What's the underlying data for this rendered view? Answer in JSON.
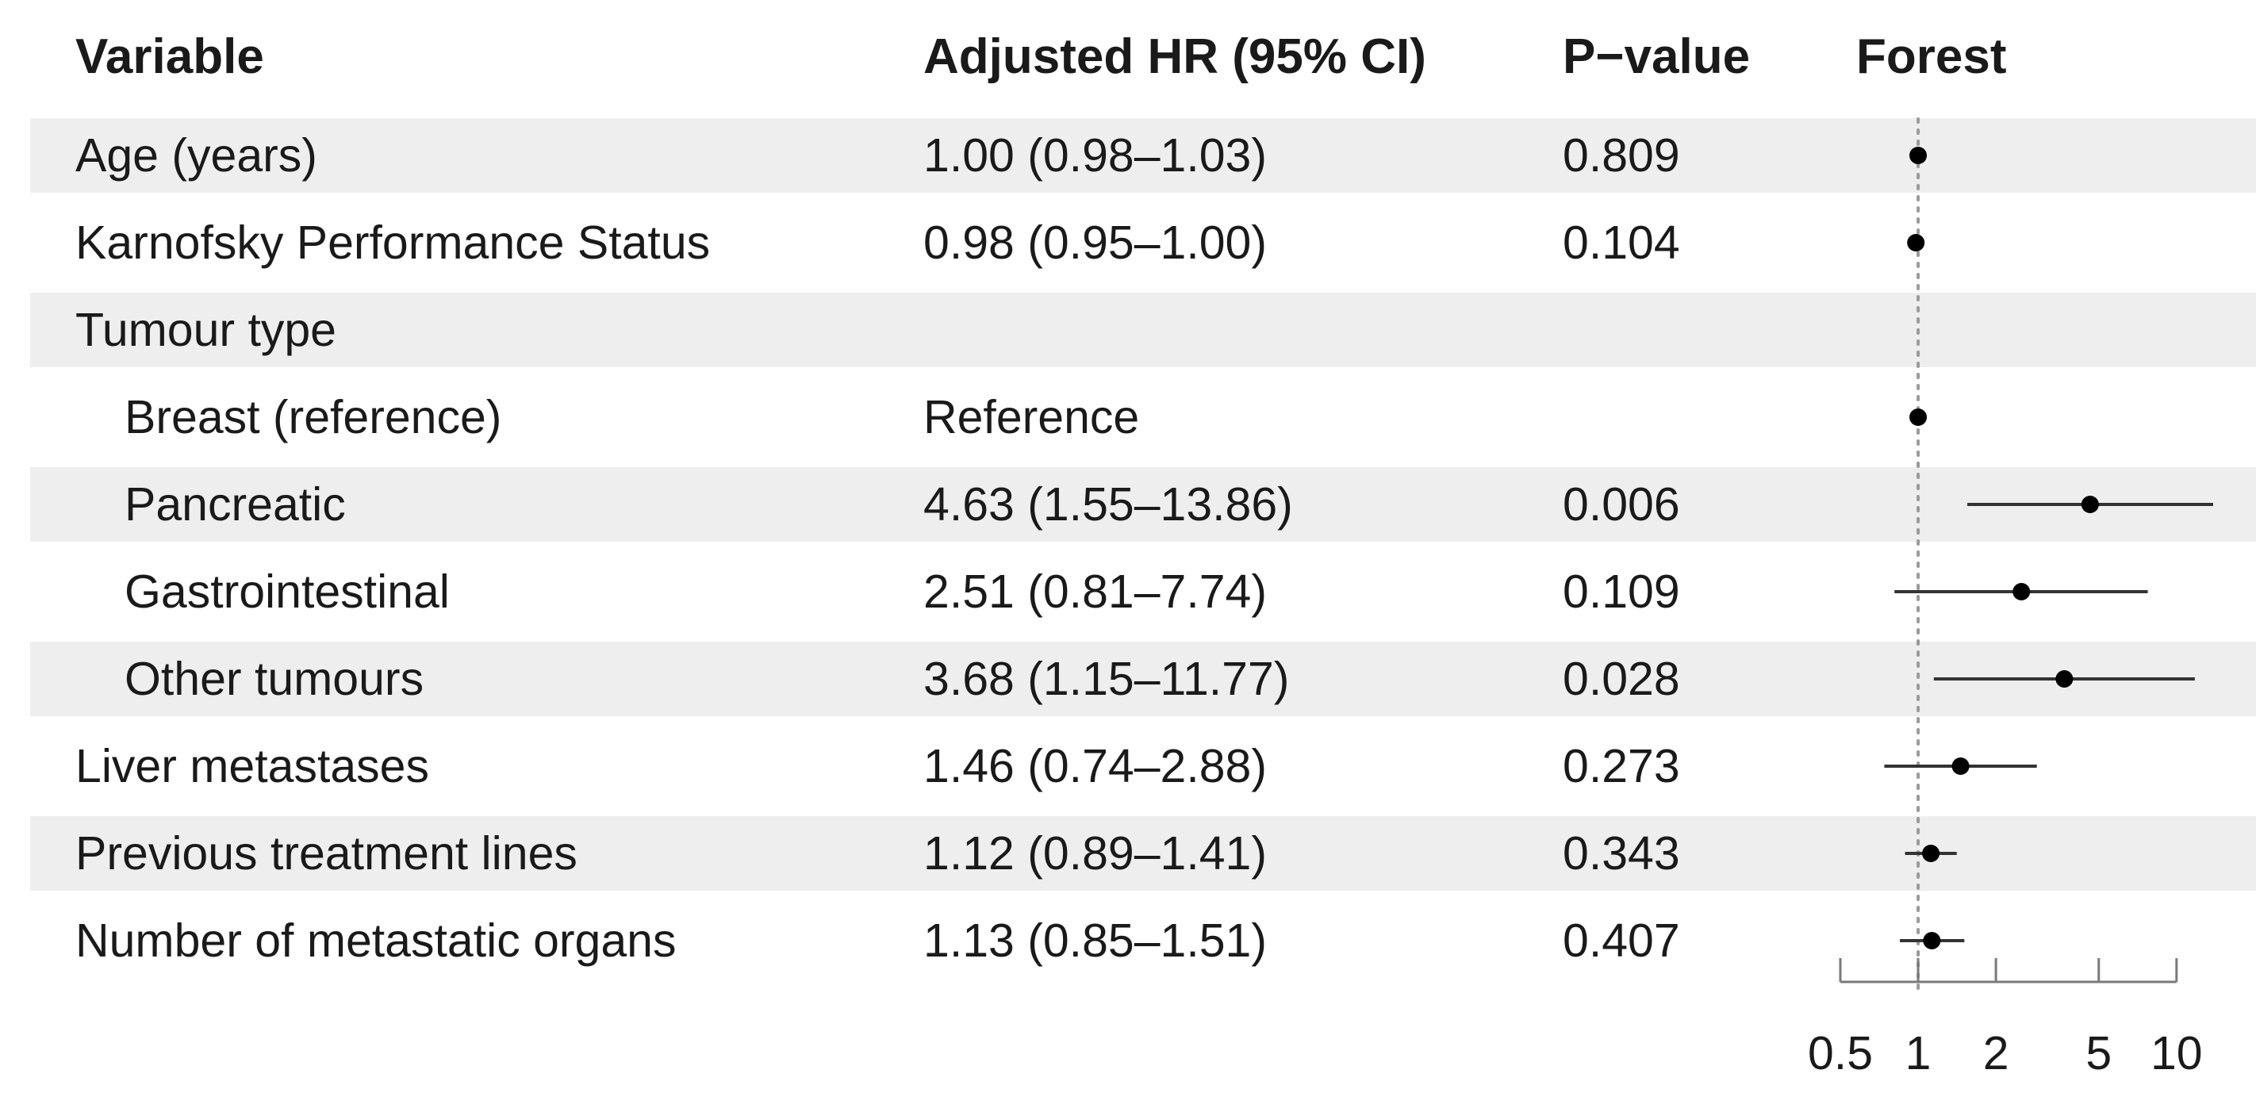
{
  "table": {
    "headers": {
      "variable": "Variable",
      "hr": "Adjusted HR (95% CI)",
      "p": "P−value",
      "forest": "Forest"
    },
    "rows": [
      {
        "variable": "Age (years)",
        "indent": false,
        "hr_text": "1.00 (0.98–1.03)",
        "p": "0.809"
      },
      {
        "variable": "Karnofsky Performance Status",
        "indent": false,
        "hr_text": "0.98 (0.95–1.00)",
        "p": "0.104"
      },
      {
        "variable": "Tumour type",
        "indent": false,
        "hr_text": "",
        "p": ""
      },
      {
        "variable": "Breast (reference)",
        "indent": true,
        "hr_text": "Reference",
        "p": ""
      },
      {
        "variable": "Pancreatic",
        "indent": true,
        "hr_text": "4.63 (1.55–13.86)",
        "p": "0.006"
      },
      {
        "variable": "Gastrointestinal",
        "indent": true,
        "hr_text": "2.51 (0.81–7.74)",
        "p": "0.109"
      },
      {
        "variable": "Other tumours",
        "indent": true,
        "hr_text": "3.68 (1.15–11.77)",
        "p": "0.028"
      },
      {
        "variable": "Liver metastases",
        "indent": false,
        "hr_text": "1.46 (0.74–2.88)",
        "p": "0.273"
      },
      {
        "variable": "Previous treatment lines",
        "indent": false,
        "hr_text": "1.12 (0.89–1.41)",
        "p": "0.343"
      },
      {
        "variable": "Number of metastatic organs",
        "indent": false,
        "hr_text": "1.13 (0.85–1.51)",
        "p": "0.407"
      }
    ]
  },
  "chart_data": {
    "type": "scatter",
    "variant": "forest",
    "x_scale": "log",
    "xlim": [
      0.5,
      13.86
    ],
    "reference_line": 1,
    "reference_line_style": "dotted",
    "xticks": [
      0.5,
      1,
      2,
      5,
      10
    ],
    "xtick_labels": [
      "0.5",
      "1",
      "2",
      "5",
      "10"
    ],
    "points": [
      {
        "label": "Age (years)",
        "hr": 1.0,
        "lo": 0.98,
        "hi": 1.03
      },
      {
        "label": "Karnofsky Performance Status",
        "hr": 0.98,
        "lo": 0.95,
        "hi": 1.0
      },
      {
        "label": "Tumour type",
        "hr": null,
        "lo": null,
        "hi": null
      },
      {
        "label": "Breast (reference)",
        "hr": 1,
        "lo": null,
        "hi": null
      },
      {
        "label": "Pancreatic",
        "hr": 4.63,
        "lo": 1.55,
        "hi": 13.86
      },
      {
        "label": "Gastrointestinal",
        "hr": 2.51,
        "lo": 0.81,
        "hi": 7.74
      },
      {
        "label": "Other tumours",
        "hr": 3.68,
        "lo": 1.15,
        "hi": 11.77
      },
      {
        "label": "Liver metastases",
        "hr": 1.46,
        "lo": 0.74,
        "hi": 2.88
      },
      {
        "label": "Previous treatment lines",
        "hr": 1.12,
        "lo": 0.89,
        "hi": 1.41
      },
      {
        "label": "Number of metastatic organs",
        "hr": 1.13,
        "lo": 0.85,
        "hi": 1.51
      }
    ],
    "colors": {
      "stripe": "#eeeeee",
      "marker": "#000000",
      "ci_line": "#333333",
      "text": "#1a1a1a"
    }
  }
}
